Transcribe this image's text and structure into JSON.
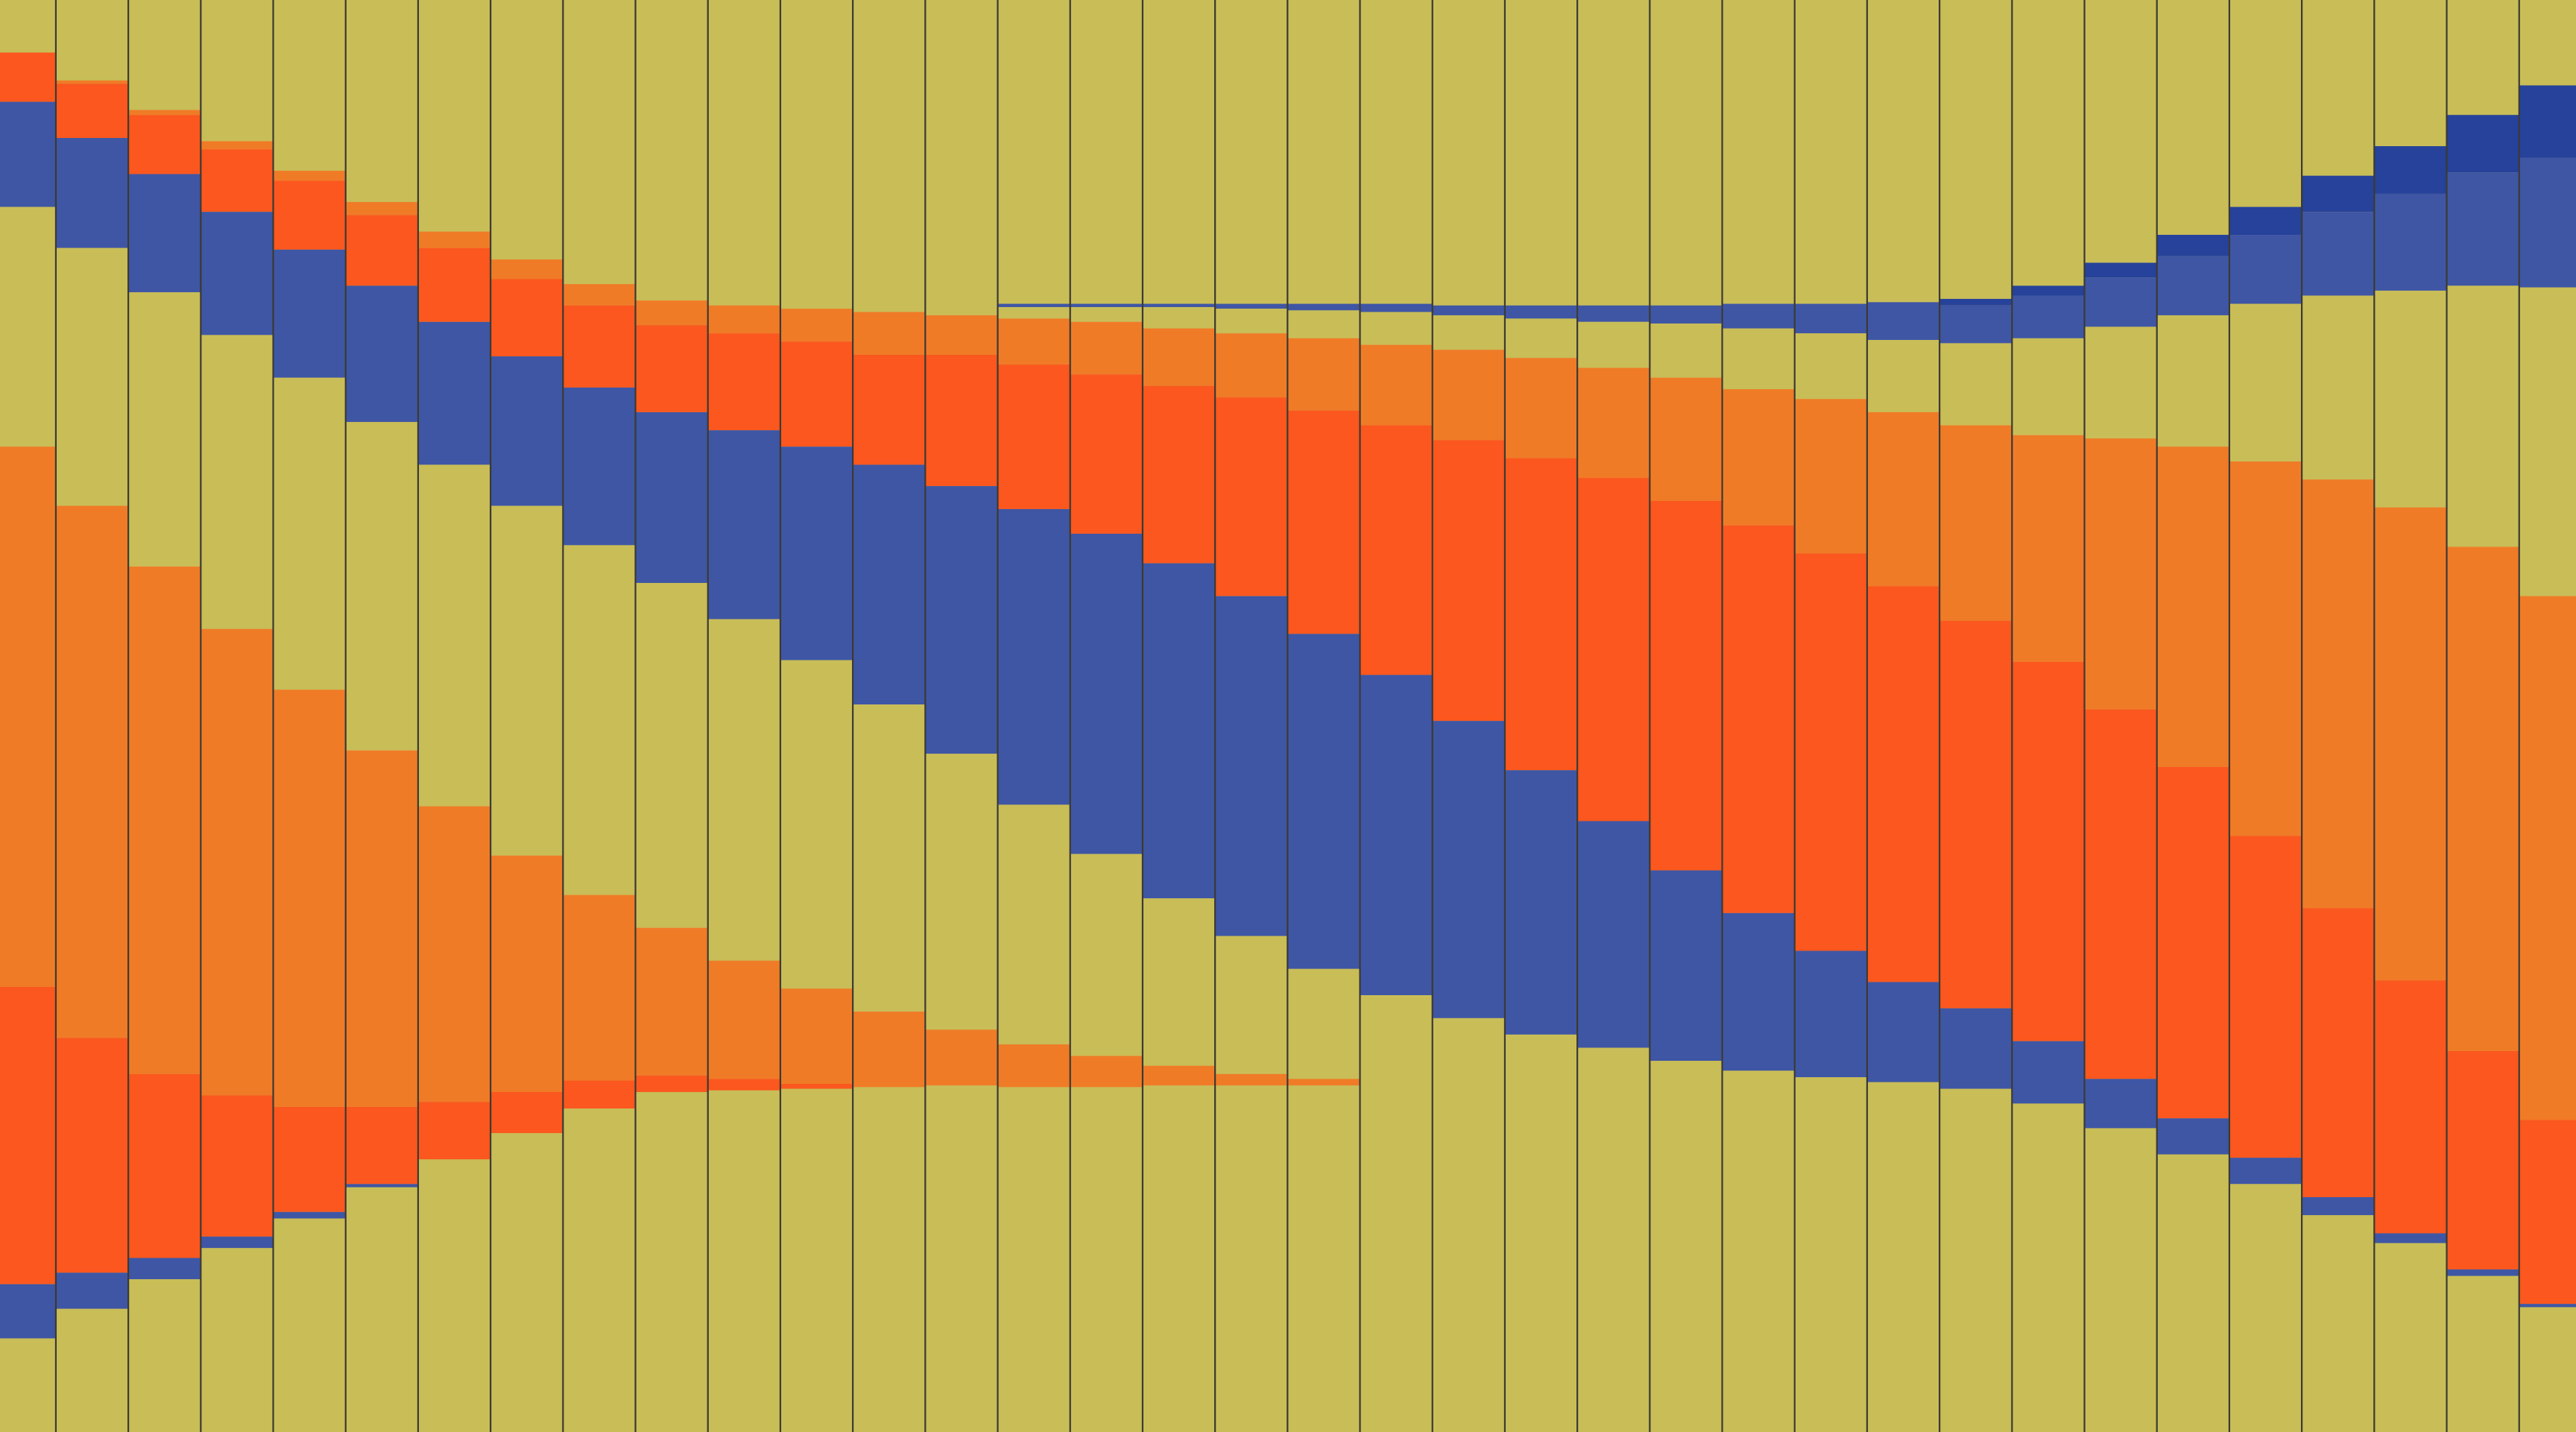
{
  "palette": {
    "y": "#c9bd58",
    "o": "#f07b27",
    "r": "#fb571e",
    "b": "#3f56a5",
    "d": "#26429a",
    "divider": "#3b3a33"
  },
  "stack_total": 872,
  "columns": [
    [
      [
        "y",
        32
      ],
      [
        "r",
        62
      ],
      [
        "b",
        126
      ],
      [
        "y",
        272
      ],
      [
        "o",
        601
      ],
      [
        "r",
        782
      ],
      [
        "b",
        815
      ],
      [
        "y",
        872
      ]
    ],
    [
      [
        "y",
        49
      ],
      [
        "o",
        51
      ],
      [
        "r",
        84
      ],
      [
        "b",
        151
      ],
      [
        "y",
        308
      ],
      [
        "o",
        632
      ],
      [
        "r",
        775
      ],
      [
        "b",
        797
      ],
      [
        "y",
        872
      ]
    ],
    [
      [
        "y",
        67
      ],
      [
        "o",
        70
      ],
      [
        "r",
        106
      ],
      [
        "b",
        178
      ],
      [
        "y",
        345
      ],
      [
        "o",
        654
      ],
      [
        "r",
        766
      ],
      [
        "b",
        779
      ],
      [
        "y",
        872
      ]
    ],
    [
      [
        "y",
        86
      ],
      [
        "o",
        91
      ],
      [
        "r",
        129
      ],
      [
        "b",
        204
      ],
      [
        "y",
        383
      ],
      [
        "o",
        667
      ],
      [
        "r",
        753
      ],
      [
        "b",
        760
      ],
      [
        "y",
        872
      ]
    ],
    [
      [
        "y",
        104
      ],
      [
        "o",
        110
      ],
      [
        "r",
        152
      ],
      [
        "b",
        230
      ],
      [
        "y",
        420
      ],
      [
        "o",
        674
      ],
      [
        "r",
        738
      ],
      [
        "b",
        742
      ],
      [
        "y",
        872
      ]
    ],
    [
      [
        "y",
        123
      ],
      [
        "o",
        131
      ],
      [
        "r",
        174
      ],
      [
        "b",
        257
      ],
      [
        "y",
        457
      ],
      [
        "o",
        674
      ],
      [
        "r",
        721
      ],
      [
        "b",
        723
      ],
      [
        "y",
        872
      ]
    ],
    [
      [
        "y",
        141
      ],
      [
        "o",
        151
      ],
      [
        "r",
        196
      ],
      [
        "b",
        283
      ],
      [
        "y",
        491
      ],
      [
        "o",
        671
      ],
      [
        "r",
        706
      ],
      [
        "y",
        872
      ]
    ],
    [
      [
        "y",
        158
      ],
      [
        "o",
        170
      ],
      [
        "r",
        217
      ],
      [
        "b",
        308
      ],
      [
        "y",
        521
      ],
      [
        "o",
        665
      ],
      [
        "r",
        690
      ],
      [
        "y",
        872
      ]
    ],
    [
      [
        "y",
        173
      ],
      [
        "o",
        186
      ],
      [
        "r",
        236
      ],
      [
        "b",
        332
      ],
      [
        "y",
        545
      ],
      [
        "o",
        658
      ],
      [
        "r",
        675
      ],
      [
        "y",
        872
      ]
    ],
    [
      [
        "y",
        183
      ],
      [
        "o",
        198
      ],
      [
        "r",
        251
      ],
      [
        "b",
        355
      ],
      [
        "y",
        565
      ],
      [
        "o",
        655
      ],
      [
        "r",
        665
      ],
      [
        "y",
        872
      ]
    ],
    [
      [
        "y",
        186
      ],
      [
        "o",
        203
      ],
      [
        "r",
        262
      ],
      [
        "b",
        377
      ],
      [
        "y",
        585
      ],
      [
        "o",
        657
      ],
      [
        "r",
        664
      ],
      [
        "y",
        872
      ]
    ],
    [
      [
        "y",
        188
      ],
      [
        "o",
        208
      ],
      [
        "r",
        272
      ],
      [
        "b",
        402
      ],
      [
        "y",
        602
      ],
      [
        "o",
        660
      ],
      [
        "r",
        663
      ],
      [
        "y",
        872
      ]
    ],
    [
      [
        "y",
        190
      ],
      [
        "o",
        216
      ],
      [
        "r",
        283
      ],
      [
        "b",
        429
      ],
      [
        "y",
        616
      ],
      [
        "o",
        662
      ],
      [
        "y",
        872
      ]
    ],
    [
      [
        "y",
        192
      ],
      [
        "o",
        216
      ],
      [
        "r",
        296
      ],
      [
        "b",
        459
      ],
      [
        "y",
        627
      ],
      [
        "o",
        661
      ],
      [
        "y",
        872
      ]
    ],
    [
      [
        "y",
        185
      ],
      [
        "b",
        187
      ],
      [
        "y",
        194
      ],
      [
        "o",
        222
      ],
      [
        "r",
        310
      ],
      [
        "b",
        490
      ],
      [
        "y",
        636
      ],
      [
        "o",
        662
      ],
      [
        "y",
        872
      ]
    ],
    [
      [
        "y",
        185
      ],
      [
        "b",
        187
      ],
      [
        "y",
        196
      ],
      [
        "o",
        228
      ],
      [
        "r",
        325
      ],
      [
        "b",
        520
      ],
      [
        "y",
        643
      ],
      [
        "o",
        662
      ],
      [
        "y",
        872
      ]
    ],
    [
      [
        "y",
        185
      ],
      [
        "b",
        187
      ],
      [
        "y",
        200
      ],
      [
        "o",
        235
      ],
      [
        "r",
        343
      ],
      [
        "b",
        547
      ],
      [
        "y",
        649
      ],
      [
        "o",
        661
      ],
      [
        "y",
        872
      ]
    ],
    [
      [
        "y",
        185
      ],
      [
        "b",
        188
      ],
      [
        "y",
        203
      ],
      [
        "o",
        242
      ],
      [
        "r",
        363
      ],
      [
        "b",
        570
      ],
      [
        "y",
        654
      ],
      [
        "o",
        661
      ],
      [
        "y",
        872
      ]
    ],
    [
      [
        "y",
        185
      ],
      [
        "b",
        189
      ],
      [
        "y",
        206
      ],
      [
        "o",
        250
      ],
      [
        "r",
        386
      ],
      [
        "b",
        590
      ],
      [
        "y",
        657
      ],
      [
        "o",
        661
      ],
      [
        "y",
        872
      ]
    ],
    [
      [
        "y",
        185
      ],
      [
        "b",
        190
      ],
      [
        "y",
        210
      ],
      [
        "o",
        259
      ],
      [
        "r",
        411
      ],
      [
        "b",
        606
      ],
      [
        "y",
        872
      ]
    ],
    [
      [
        "y",
        186
      ],
      [
        "b",
        192
      ],
      [
        "y",
        213
      ],
      [
        "o",
        268
      ],
      [
        "r",
        439
      ],
      [
        "b",
        620
      ],
      [
        "y",
        872
      ]
    ],
    [
      [
        "y",
        186
      ],
      [
        "b",
        194
      ],
      [
        "y",
        218
      ],
      [
        "o",
        279
      ],
      [
        "r",
        469
      ],
      [
        "b",
        630
      ],
      [
        "y",
        872
      ]
    ],
    [
      [
        "y",
        186
      ],
      [
        "b",
        196
      ],
      [
        "y",
        224
      ],
      [
        "o",
        291
      ],
      [
        "r",
        500
      ],
      [
        "b",
        638
      ],
      [
        "y",
        872
      ]
    ],
    [
      [
        "y",
        186
      ],
      [
        "b",
        197
      ],
      [
        "y",
        230
      ],
      [
        "o",
        305
      ],
      [
        "r",
        530
      ],
      [
        "b",
        646
      ],
      [
        "y",
        872
      ]
    ],
    [
      [
        "y",
        185
      ],
      [
        "b",
        200
      ],
      [
        "y",
        237
      ],
      [
        "o",
        320
      ],
      [
        "r",
        556
      ],
      [
        "b",
        652
      ],
      [
        "y",
        872
      ]
    ],
    [
      [
        "y",
        185
      ],
      [
        "b",
        203
      ],
      [
        "y",
        243
      ],
      [
        "o",
        337
      ],
      [
        "r",
        579
      ],
      [
        "b",
        656
      ],
      [
        "y",
        872
      ]
    ],
    [
      [
        "y",
        184
      ],
      [
        "b",
        207
      ],
      [
        "y",
        251
      ],
      [
        "o",
        357
      ],
      [
        "r",
        598
      ],
      [
        "b",
        659
      ],
      [
        "y",
        872
      ]
    ],
    [
      [
        "y",
        182
      ],
      [
        "d",
        186
      ],
      [
        "b",
        209
      ],
      [
        "y",
        259
      ],
      [
        "o",
        378
      ],
      [
        "r",
        614
      ],
      [
        "b",
        663
      ],
      [
        "y",
        872
      ]
    ],
    [
      [
        "y",
        174
      ],
      [
        "d",
        180
      ],
      [
        "b",
        206
      ],
      [
        "y",
        265
      ],
      [
        "o",
        403
      ],
      [
        "r",
        634
      ],
      [
        "b",
        672
      ],
      [
        "y",
        872
      ]
    ],
    [
      [
        "y",
        160
      ],
      [
        "d",
        169
      ],
      [
        "b",
        199
      ],
      [
        "y",
        267
      ],
      [
        "o",
        432
      ],
      [
        "r",
        657
      ],
      [
        "b",
        687
      ],
      [
        "y",
        872
      ]
    ],
    [
      [
        "y",
        143
      ],
      [
        "d",
        156
      ],
      [
        "b",
        192
      ],
      [
        "y",
        272
      ],
      [
        "o",
        467
      ],
      [
        "r",
        681
      ],
      [
        "b",
        703
      ],
      [
        "y",
        872
      ]
    ],
    [
      [
        "y",
        126
      ],
      [
        "d",
        143
      ],
      [
        "b",
        185
      ],
      [
        "y",
        281
      ],
      [
        "o",
        509
      ],
      [
        "r",
        705
      ],
      [
        "b",
        721
      ],
      [
        "y",
        872
      ]
    ],
    [
      [
        "y",
        107
      ],
      [
        "d",
        129
      ],
      [
        "b",
        180
      ],
      [
        "y",
        292
      ],
      [
        "o",
        553
      ],
      [
        "r",
        729
      ],
      [
        "b",
        740
      ],
      [
        "y",
        872
      ]
    ],
    [
      [
        "y",
        89
      ],
      [
        "d",
        118
      ],
      [
        "b",
        177
      ],
      [
        "y",
        309
      ],
      [
        "o",
        597
      ],
      [
        "r",
        751
      ],
      [
        "b",
        757
      ],
      [
        "y",
        872
      ]
    ],
    [
      [
        "y",
        70
      ],
      [
        "d",
        105
      ],
      [
        "b",
        174
      ],
      [
        "y",
        333
      ],
      [
        "o",
        640
      ],
      [
        "r",
        773
      ],
      [
        "b",
        777
      ],
      [
        "y",
        872
      ]
    ],
    [
      [
        "y",
        52
      ],
      [
        "d",
        96
      ],
      [
        "b",
        175
      ],
      [
        "y",
        363
      ],
      [
        "o",
        682
      ],
      [
        "r",
        794
      ],
      [
        "b",
        796
      ],
      [
        "y",
        872
      ]
    ]
  ]
}
